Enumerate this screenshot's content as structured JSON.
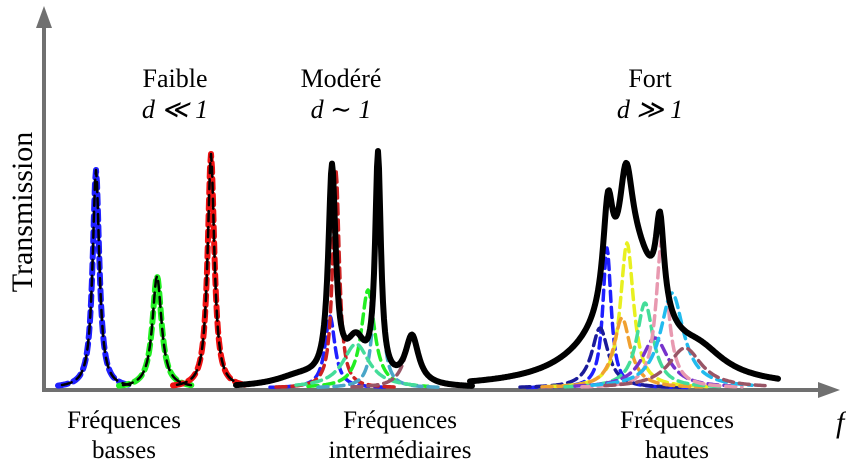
{
  "axes": {
    "y_label": "Transmission",
    "x_label": "f"
  },
  "regimes": [
    {
      "name": "Faible",
      "condition": "d ≪ 1"
    },
    {
      "name": "Modéré",
      "condition": "d ∼ 1"
    },
    {
      "name": "Fort",
      "condition": "d ≫ 1"
    }
  ],
  "bands": [
    {
      "line1": "Fréquences",
      "line2": "basses"
    },
    {
      "line1": "Fréquences",
      "line2": "intermédiaires"
    },
    {
      "line1": "Fréquences",
      "line2": "hautes"
    }
  ],
  "colors": {
    "axis": "#707070",
    "total": "#000000",
    "blue": "#1f1fff",
    "green": "#22ee22",
    "red": "#ee1111",
    "darkred": "#cc2222",
    "teal": "#4aa6c8",
    "seafoam": "#44dd99",
    "mauve": "#995566",
    "yellow": "#e8f020",
    "orange": "#f0a030",
    "pink": "#e899b0",
    "cyan": "#22bbee",
    "navy": "#1a1a99",
    "violet": "#7733cc"
  }
}
